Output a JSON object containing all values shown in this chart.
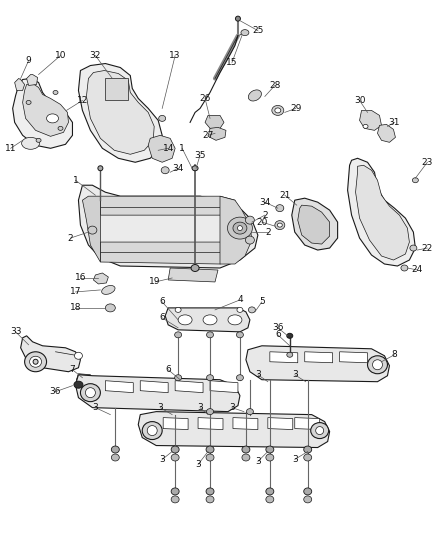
{
  "background_color": "#ffffff",
  "fig_width": 4.38,
  "fig_height": 5.33,
  "dpi": 100,
  "line_color": "#1a1a1a",
  "label_fontsize": 6.5,
  "label_color": "#111111",
  "lw_thin": 0.5,
  "lw_med": 0.8,
  "lw_thick": 1.2,
  "part_fill": "#f2f2f2",
  "part_fill2": "#e8e8e8",
  "part_fill3": "#dddddd"
}
